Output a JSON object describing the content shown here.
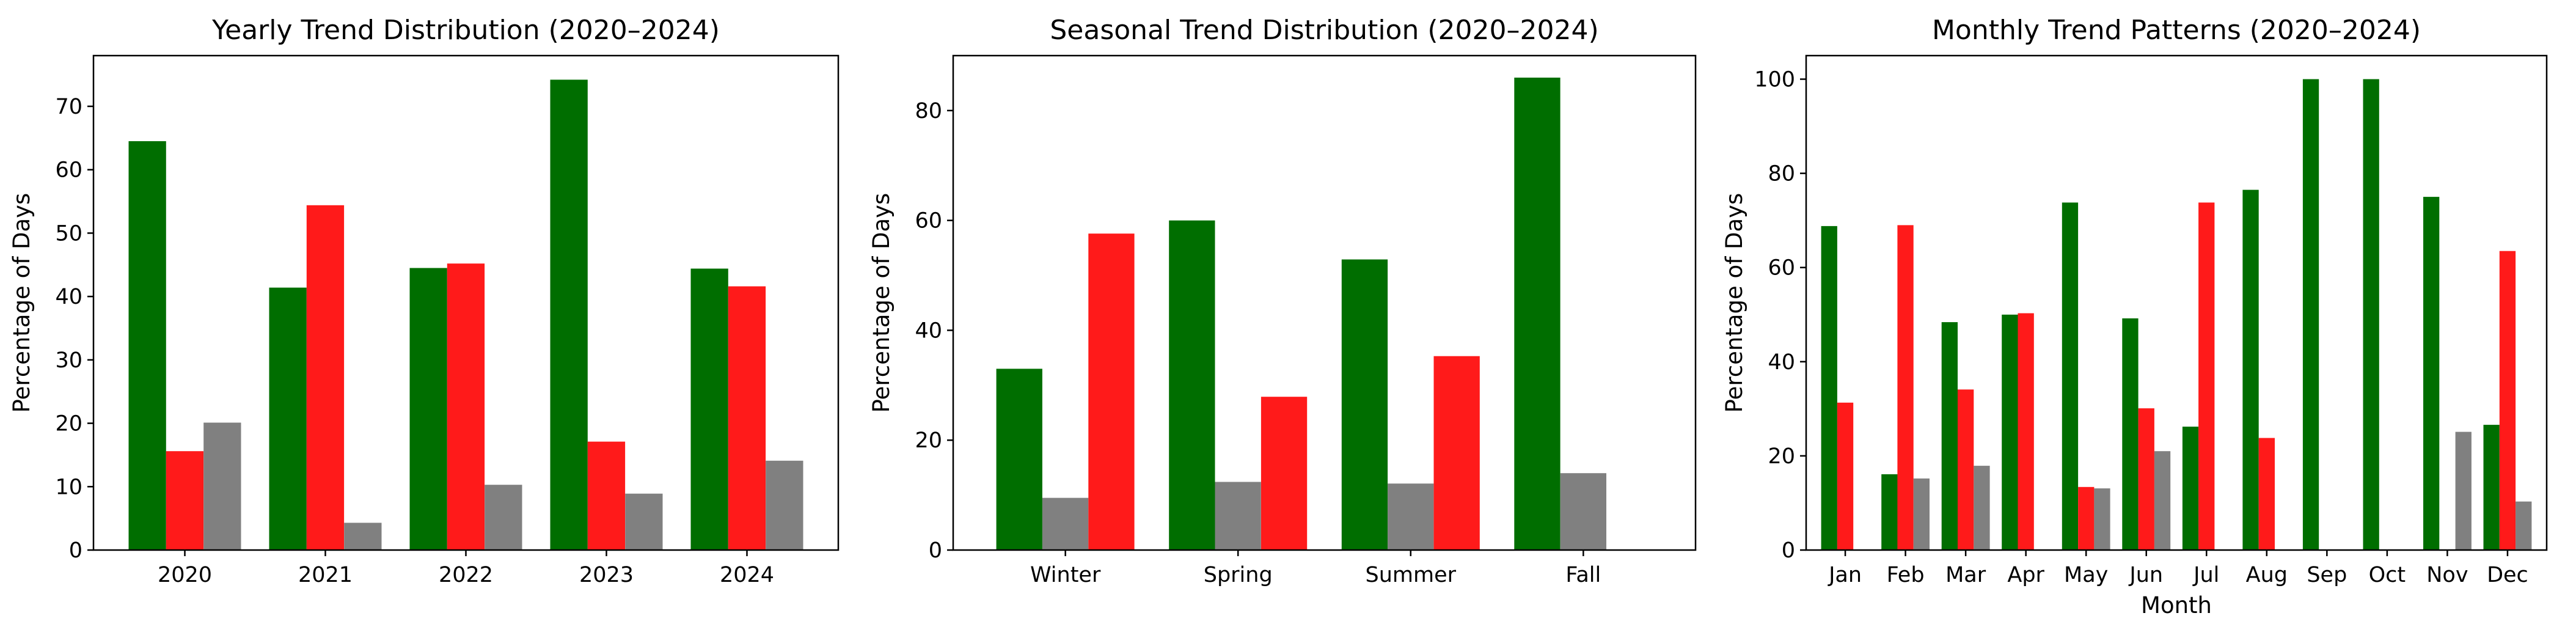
{
  "chart_data": [
    {
      "type": "bar",
      "title": "Yearly Trend Distribution (2020–2024)",
      "xlabel": "",
      "ylabel": "Percentage of Days",
      "ylim": [
        0,
        78
      ],
      "yticks": [
        0,
        10,
        20,
        30,
        40,
        50,
        60,
        70
      ],
      "categories": [
        "2020",
        "2021",
        "2022",
        "2023",
        "2024"
      ],
      "series": [
        {
          "color": "#006e00",
          "values": [
            64.5,
            41.4,
            44.5,
            74.2,
            44.4
          ]
        },
        {
          "color": "#ff1a1a",
          "values": [
            15.6,
            54.4,
            45.2,
            17.1,
            41.6
          ]
        },
        {
          "color": "#808080",
          "values": [
            20.1,
            4.3,
            10.3,
            8.9,
            14.1
          ]
        }
      ],
      "grid": false
    },
    {
      "type": "bar",
      "title": "Seasonal Trend Distribution (2020–2024)",
      "xlabel": "",
      "ylabel": "Percentage of Days",
      "ylim": [
        0,
        90
      ],
      "yticks": [
        0,
        20,
        40,
        60,
        80
      ],
      "categories": [
        "Winter",
        "Spring",
        "Summer",
        "Fall"
      ],
      "series": [
        {
          "color": "#006e00",
          "values": [
            33.0,
            60.0,
            52.9,
            86.0
          ]
        },
        {
          "color": "#808080",
          "values": [
            9.5,
            12.4,
            12.1,
            14.0
          ]
        },
        {
          "color": "#ff1a1a",
          "values": [
            57.6,
            27.9,
            35.3,
            0
          ]
        }
      ],
      "grid": false
    },
    {
      "type": "bar",
      "title": "Monthly Trend Patterns (2020–2024)",
      "xlabel": "Month",
      "ylabel": "Percentage of Days",
      "ylim": [
        0,
        105
      ],
      "yticks": [
        0,
        20,
        40,
        60,
        80,
        100
      ],
      "categories": [
        "Jan",
        "Feb",
        "Mar",
        "Apr",
        "May",
        "Jun",
        "Jul",
        "Aug",
        "Sep",
        "Oct",
        "Nov",
        "Dec"
      ],
      "series": [
        {
          "color": "#006e00",
          "values": [
            68.8,
            16.1,
            48.4,
            50.0,
            73.8,
            49.2,
            26.2,
            76.5,
            100,
            100,
            75.0,
            26.6
          ]
        },
        {
          "color": "#ff1a1a",
          "values": [
            31.3,
            69.0,
            34.1,
            50.3,
            13.4,
            30.1,
            73.8,
            23.8,
            0,
            0,
            0,
            63.5
          ]
        },
        {
          "color": "#808080",
          "values": [
            0,
            15.2,
            17.9,
            0,
            13.1,
            21.0,
            0,
            0,
            0,
            0,
            25.1,
            10.3
          ]
        }
      ],
      "grid": false
    }
  ]
}
